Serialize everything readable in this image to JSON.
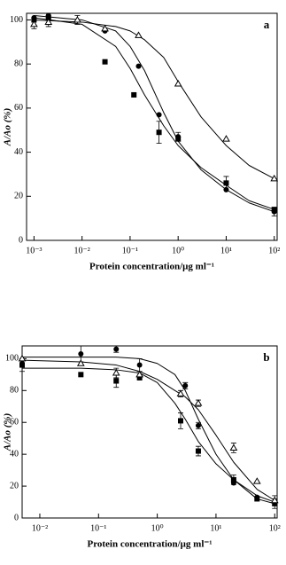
{
  "chart_data": [
    {
      "type": "scatter",
      "panel_label": "a",
      "x_label": "Protein concentration/μg ml⁻¹",
      "y_label": "A/Ao (%)",
      "xscale": "log",
      "xlim": [
        0.0007,
        115
      ],
      "ylim": [
        0,
        103
      ],
      "xticks": [
        {
          "value": 0.001,
          "label": "10⁻³"
        },
        {
          "value": 0.01,
          "label": "10⁻²"
        },
        {
          "value": 0.1,
          "label": "10⁻¹"
        },
        {
          "value": 1,
          "label": "10⁰"
        },
        {
          "value": 10,
          "label": "10¹"
        },
        {
          "value": 100,
          "label": "10²"
        }
      ],
      "yticks": [
        0,
        20,
        40,
        60,
        80,
        100
      ],
      "series": [
        {
          "marker": "circle",
          "color": "#000000",
          "x": [
            0.001,
            0.002,
            0.03,
            0.15,
            0.4,
            1,
            10,
            100
          ],
          "values": [
            101,
            102,
            95,
            79,
            57,
            47,
            23,
            13
          ],
          "errors": [
            null,
            null,
            null,
            null,
            null,
            2,
            null,
            2
          ],
          "fit": {
            "x": [
              0.001,
              0.01,
              0.05,
              0.1,
              0.2,
              0.5,
              1,
              3,
              10,
              30,
              100
            ],
            "values": [
              102,
              100,
              95,
              88,
              77,
              58,
              45,
              32,
              23,
              17,
              13
            ]
          }
        },
        {
          "marker": "square",
          "color": "#000000",
          "x": [
            0.001,
            0.002,
            0.03,
            0.12,
            0.4,
            1,
            10,
            100
          ],
          "values": [
            100,
            101,
            81,
            66,
            49,
            46,
            26,
            14
          ],
          "errors": [
            null,
            null,
            null,
            null,
            5,
            null,
            3,
            null
          ],
          "fit": {
            "x": [
              0.001,
              0.01,
              0.05,
              0.1,
              0.2,
              0.5,
              1,
              3,
              10,
              30,
              100
            ],
            "values": [
              101,
              98,
              88,
              78,
              66,
              52,
              43,
              33,
              25,
              18,
              14
            ]
          }
        },
        {
          "marker": "triangle",
          "color": "#000000",
          "x": [
            0.001,
            0.002,
            0.008,
            0.03,
            0.15,
            1,
            10,
            100
          ],
          "values": [
            98,
            99,
            100,
            96,
            93,
            71,
            46,
            28
          ],
          "errors": [
            2,
            2,
            2,
            null,
            null,
            null,
            null,
            null
          ],
          "fit": {
            "x": [
              0.001,
              0.01,
              0.05,
              0.1,
              0.2,
              0.5,
              1,
              3,
              10,
              30,
              100
            ],
            "values": [
              100,
              99,
              97,
              95,
              91,
              83,
              72,
              56,
              43,
              34,
              28
            ]
          }
        }
      ]
    },
    {
      "type": "scatter",
      "panel_label": "b",
      "x_label": "Protein concentration/μg ml⁻¹",
      "y_label": "A/Ao (%)",
      "xscale": "log",
      "xlim": [
        0.005,
        110
      ],
      "ylim": [
        0,
        108
      ],
      "xticks": [
        {
          "value": 0.01,
          "label": "10⁻²"
        },
        {
          "value": 0.1,
          "label": "10⁻¹"
        },
        {
          "value": 1,
          "label": "10⁰"
        },
        {
          "value": 10,
          "label": "10¹"
        },
        {
          "value": 100,
          "label": "10²"
        }
      ],
      "yticks": [
        0,
        20,
        40,
        60,
        80,
        100
      ],
      "series": [
        {
          "marker": "circle",
          "color": "#000000",
          "x": [
            0.005,
            0.05,
            0.2,
            0.5,
            3,
            5,
            20,
            50,
            100
          ],
          "values": [
            97,
            103,
            106,
            96,
            83,
            58,
            22,
            13,
            10
          ],
          "errors": [
            null,
            5,
            2,
            4,
            2,
            2,
            null,
            null,
            null
          ],
          "fit": {
            "x": [
              0.005,
              0.05,
              0.2,
              0.5,
              1,
              2,
              3,
              5,
              10,
              20,
              50,
              100
            ],
            "values": [
              101,
              101,
              101,
              100,
              97,
              90,
              80,
              62,
              40,
              24,
              12,
              9
            ]
          }
        },
        {
          "marker": "square",
          "color": "#000000",
          "x": [
            0.005,
            0.05,
            0.2,
            0.5,
            2.5,
            5,
            20,
            50,
            100
          ],
          "values": [
            96,
            90,
            86,
            88,
            61,
            42,
            24,
            12,
            9
          ],
          "errors": [
            4,
            null,
            4,
            null,
            5,
            3,
            3,
            null,
            3
          ],
          "fit": {
            "x": [
              0.005,
              0.05,
              0.2,
              0.5,
              1,
              2,
              3,
              5,
              10,
              20,
              50,
              100
            ],
            "values": [
              94,
              94,
              93,
              91,
              85,
              72,
              62,
              48,
              34,
              24,
              14,
              10
            ]
          }
        },
        {
          "marker": "triangle",
          "color": "#000000",
          "x": [
            0.005,
            0.05,
            0.2,
            0.5,
            2.5,
            5,
            20,
            50,
            100
          ],
          "values": [
            100,
            97,
            91,
            90,
            78,
            72,
            44,
            23,
            11
          ],
          "errors": [
            null,
            null,
            3,
            null,
            2,
            2,
            3,
            null,
            3
          ],
          "fit": {
            "x": [
              0.005,
              0.05,
              0.2,
              0.5,
              1,
              2,
              3,
              5,
              10,
              20,
              50,
              100
            ],
            "values": [
              99,
              98,
              96,
              92,
              87,
              80,
              76,
              68,
              52,
              35,
              18,
              11
            ]
          }
        }
      ]
    }
  ]
}
